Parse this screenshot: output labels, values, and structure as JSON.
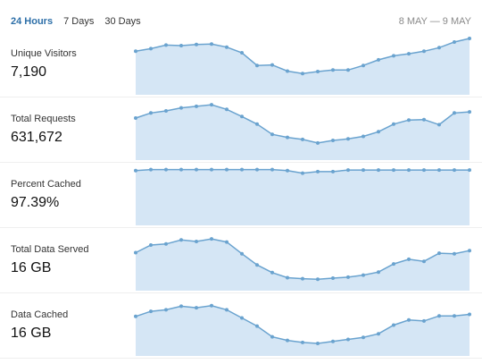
{
  "tabs": [
    "24 Hours",
    "7 Days",
    "30 Days"
  ],
  "active_tab": 0,
  "date_range": "8 MAY — 9 MAY",
  "colors": {
    "accent": "#2d6fa8",
    "series": "#6aa3cf",
    "fill": "#d5e6f5"
  },
  "metrics": [
    {
      "label": "Unique Visitors",
      "value": "7,190",
      "series": [
        0.75,
        0.8,
        0.87,
        0.86,
        0.88,
        0.89,
        0.83,
        0.72,
        0.47,
        0.48,
        0.36,
        0.31,
        0.35,
        0.38,
        0.38,
        0.47,
        0.58,
        0.66,
        0.7,
        0.75,
        0.82,
        0.93,
        1.0
      ]
    },
    {
      "label": "Total Requests",
      "value": "631,672",
      "series": [
        0.72,
        0.82,
        0.86,
        0.92,
        0.95,
        0.98,
        0.89,
        0.75,
        0.6,
        0.4,
        0.34,
        0.3,
        0.23,
        0.28,
        0.31,
        0.36,
        0.45,
        0.6,
        0.68,
        0.69,
        0.59,
        0.82,
        0.84
      ]
    },
    {
      "label": "Percent Cached",
      "value": "97.39%",
      "series": [
        0.97,
        0.99,
        0.99,
        0.99,
        0.99,
        0.99,
        0.99,
        0.99,
        0.99,
        0.99,
        0.97,
        0.92,
        0.95,
        0.95,
        0.98,
        0.98,
        0.98,
        0.98,
        0.98,
        0.98,
        0.98,
        0.98,
        0.98
      ]
    },
    {
      "label": "Total Data Served",
      "value": "16 GB",
      "series": [
        0.64,
        0.79,
        0.81,
        0.89,
        0.86,
        0.91,
        0.85,
        0.62,
        0.4,
        0.25,
        0.15,
        0.13,
        0.12,
        0.14,
        0.16,
        0.2,
        0.26,
        0.42,
        0.51,
        0.47,
        0.63,
        0.62,
        0.68
      ]
    },
    {
      "label": "Data Cached",
      "value": "16 GB",
      "series": [
        0.67,
        0.77,
        0.8,
        0.87,
        0.84,
        0.88,
        0.8,
        0.64,
        0.48,
        0.27,
        0.2,
        0.16,
        0.14,
        0.18,
        0.22,
        0.26,
        0.33,
        0.5,
        0.6,
        0.58,
        0.68,
        0.68,
        0.71
      ]
    }
  ]
}
